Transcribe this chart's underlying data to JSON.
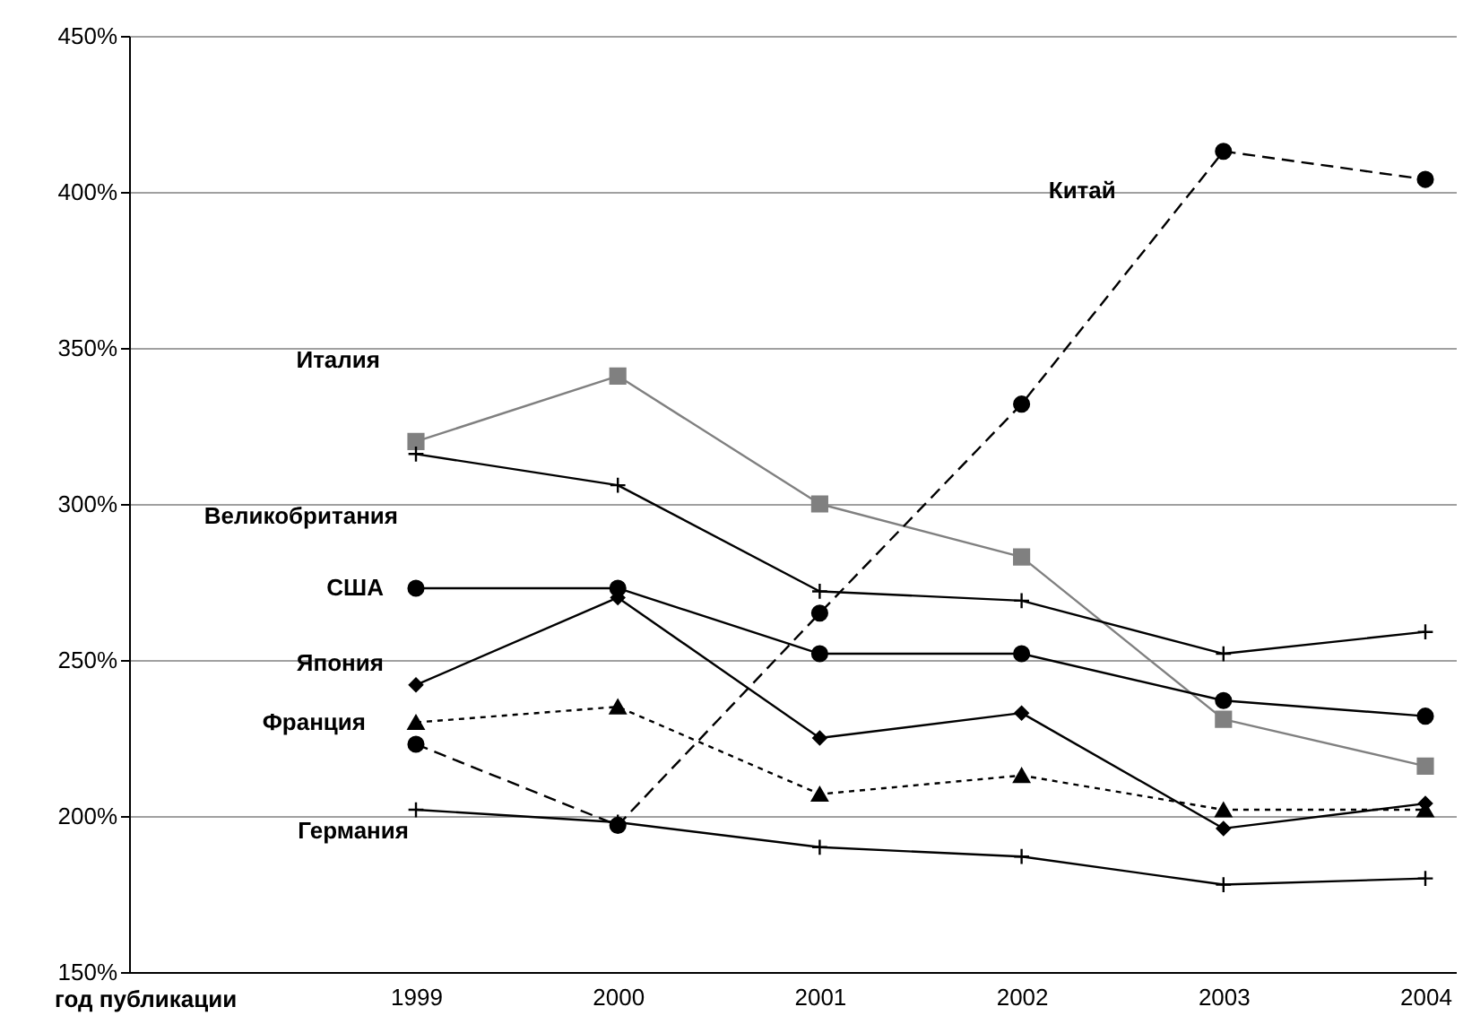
{
  "chart_data": {
    "type": "line",
    "xlabel": "год публикации",
    "categories": [
      "1999",
      "2000",
      "2001",
      "2002",
      "2003",
      "2004"
    ],
    "ylim": [
      150,
      450
    ],
    "yticks": [
      {
        "value": 150,
        "label": "150%"
      },
      {
        "value": 200,
        "label": "200%"
      },
      {
        "value": 250,
        "label": "250%"
      },
      {
        "value": 300,
        "label": "300%"
      },
      {
        "value": 350,
        "label": "350%"
      },
      {
        "value": 400,
        "label": "400%"
      },
      {
        "value": 450,
        "label": "450%"
      }
    ],
    "grid": "y",
    "series": [
      {
        "name": "Италия",
        "color": "#808080",
        "marker": "square",
        "line_style": "solid",
        "values": [
          320,
          341,
          300,
          283,
          231,
          216
        ]
      },
      {
        "name": "Великобритания",
        "color": "#000000",
        "marker": "cross",
        "line_style": "solid",
        "values": [
          316,
          306,
          272,
          269,
          252,
          259
        ]
      },
      {
        "name": "США",
        "color": "#000000",
        "marker": "circle",
        "line_style": "solid",
        "values": [
          273,
          273,
          252,
          252,
          237,
          232
        ]
      },
      {
        "name": "Япония",
        "color": "#000000",
        "marker": "diamond",
        "line_style": "solid",
        "values": [
          242,
          270,
          225,
          233,
          196,
          204
        ]
      },
      {
        "name": "Франция",
        "color": "#000000",
        "marker": "triangle",
        "line_style": "dotted",
        "values": [
          230,
          235,
          207,
          213,
          202,
          202
        ]
      },
      {
        "name": "Китай",
        "color": "#000000",
        "marker": "circle",
        "line_style": "dashed",
        "values": [
          223,
          197,
          265,
          332,
          413,
          404
        ]
      },
      {
        "name": "Германия",
        "color": "#000000",
        "marker": "cross",
        "line_style": "solid",
        "values": [
          202,
          198,
          190,
          187,
          178,
          180
        ]
      }
    ]
  }
}
